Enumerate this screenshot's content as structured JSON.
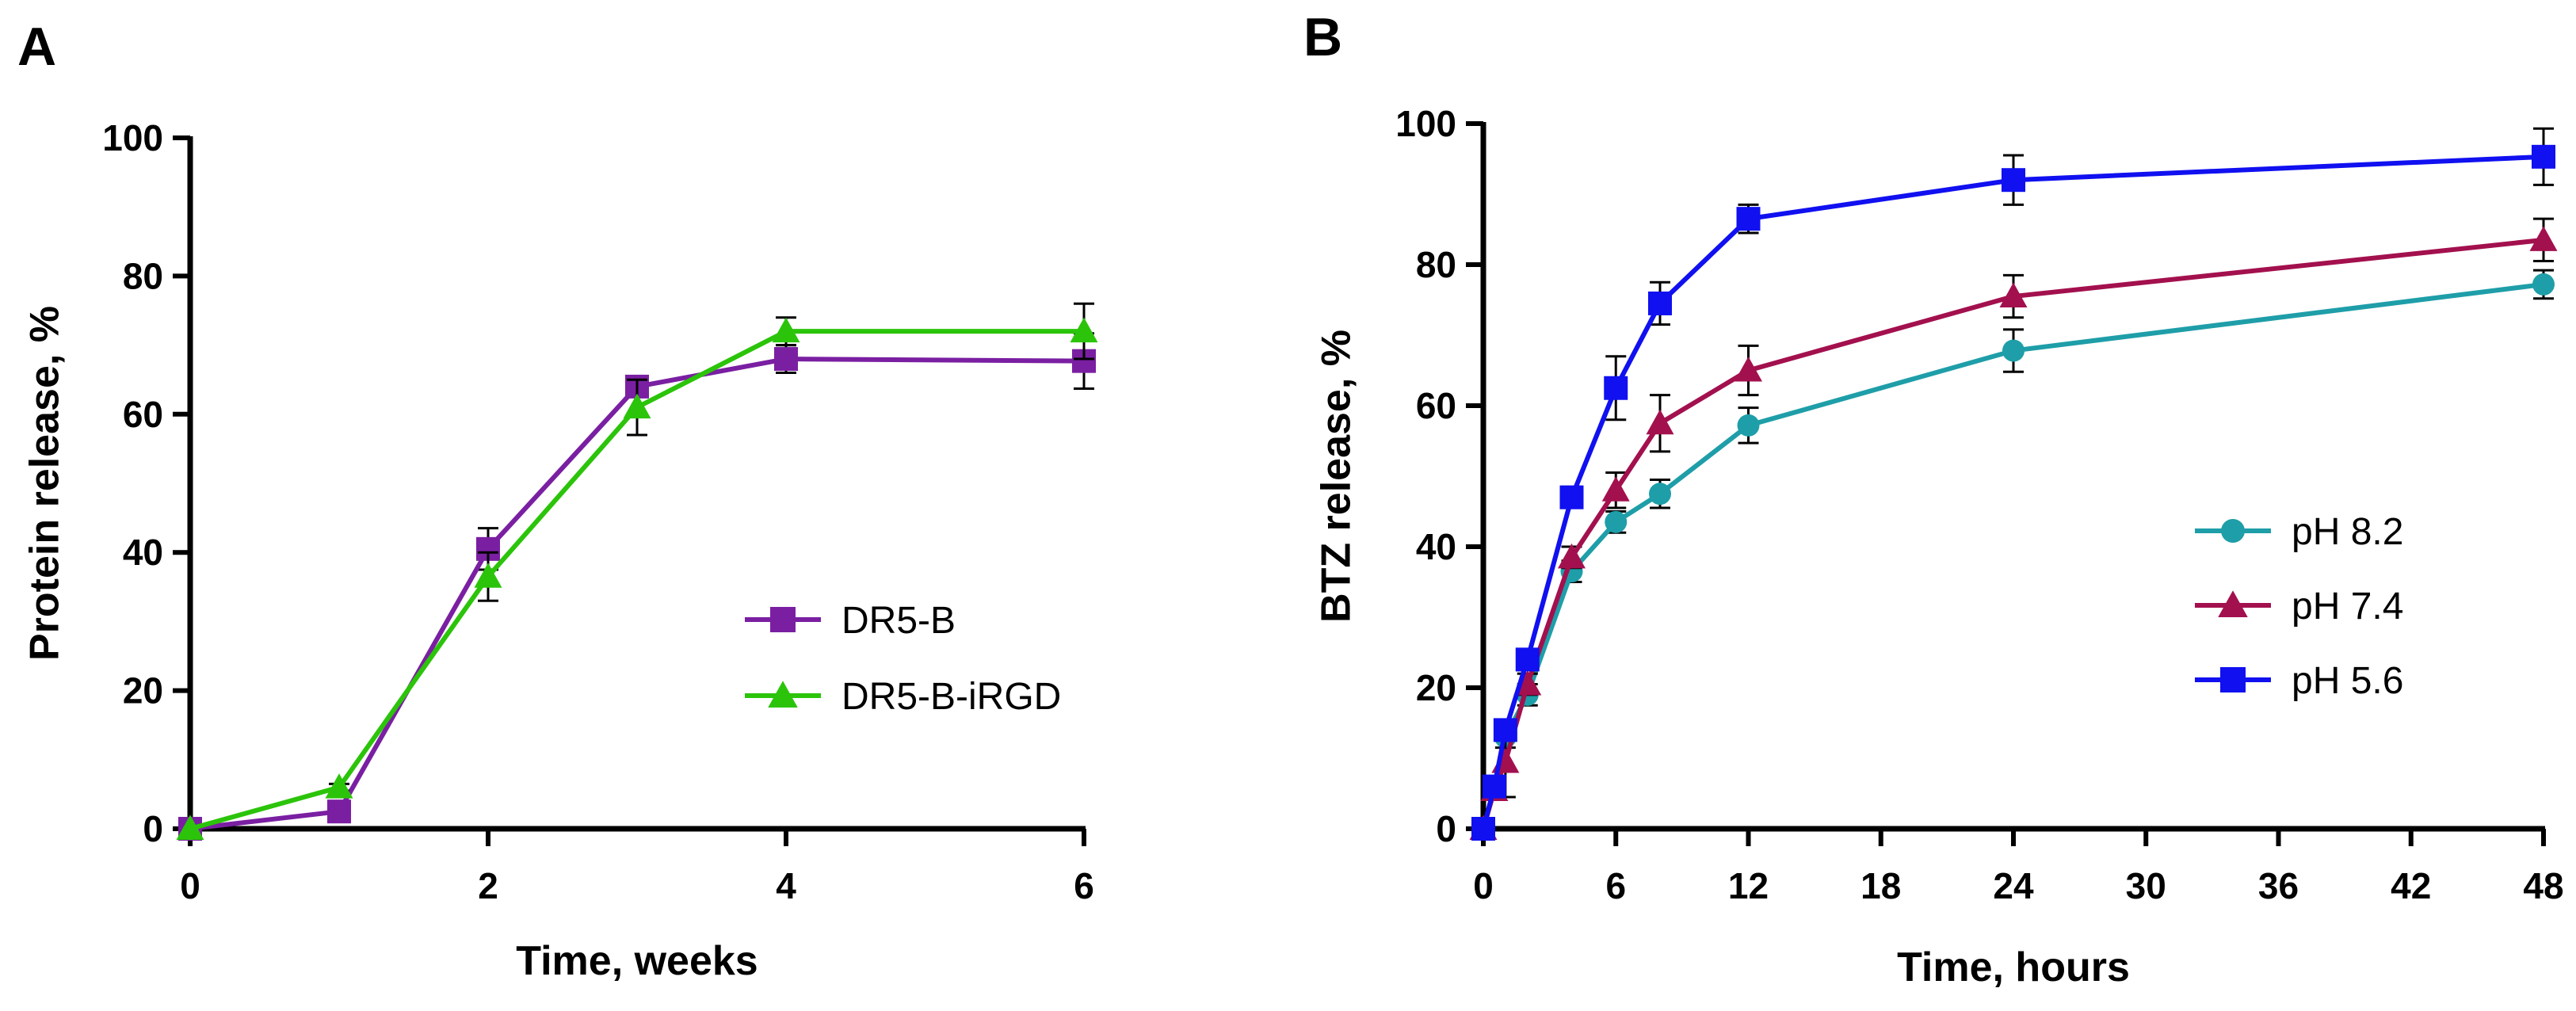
{
  "chart_data": [
    {
      "panel": "A",
      "type": "line",
      "xlabel": "Time, weeks",
      "ylabel": "Protein release, %",
      "xlim": [
        0,
        6
      ],
      "ylim": [
        0,
        100
      ],
      "xticks": [
        0,
        2,
        4,
        6
      ],
      "yticks": [
        0,
        20,
        40,
        60,
        80,
        100
      ],
      "grid": false,
      "legend_position": "center-right",
      "series": [
        {
          "name": "DR5-B",
          "color": "#7a1fa2",
          "marker": "square",
          "x": [
            0,
            1,
            2,
            3,
            4,
            6
          ],
          "y": [
            0,
            2.5,
            40.5,
            64,
            68,
            67.7
          ],
          "err": [
            0,
            0.5,
            3,
            1.5,
            2,
            4
          ]
        },
        {
          "name": "DR5-B-iRGD",
          "color": "#2bc40a",
          "marker": "triangle",
          "x": [
            0,
            1,
            2,
            3,
            4,
            6
          ],
          "y": [
            0,
            6,
            36.5,
            61,
            72,
            72
          ],
          "err": [
            0,
            0.5,
            3.5,
            4,
            2,
            4
          ]
        }
      ]
    },
    {
      "panel": "B",
      "type": "line",
      "xlabel": "Time, hours",
      "ylabel": "BTZ release, %",
      "xlim": [
        0,
        48
      ],
      "ylim": [
        0,
        100
      ],
      "xticks": [
        0,
        6,
        12,
        18,
        24,
        30,
        36,
        42,
        48
      ],
      "yticks": [
        0,
        20,
        40,
        60,
        80,
        100
      ],
      "grid": false,
      "legend_position": "center-right",
      "series": [
        {
          "name": "pH 8.2",
          "color": "#1e9ea8",
          "marker": "circle",
          "x": [
            0,
            0.5,
            1,
            2,
            4,
            6,
            8,
            12,
            24,
            48
          ],
          "y": [
            0,
            5.5,
            13,
            19,
            36.5,
            43.5,
            47.5,
            57.2,
            67.8,
            77.2
          ],
          "err": [
            0,
            1,
            1.5,
            1.5,
            1.5,
            1.5,
            2,
            2.5,
            3,
            2
          ]
        },
        {
          "name": "pH 7.4",
          "color": "#a3104e",
          "marker": "triangle",
          "x": [
            0,
            0.5,
            1,
            2,
            4,
            6,
            8,
            12,
            24,
            48
          ],
          "y": [
            0,
            5.5,
            9.5,
            20.5,
            38.5,
            48,
            57.5,
            65,
            75.5,
            83.5
          ],
          "err": [
            0,
            1,
            5,
            1.5,
            1.5,
            2.5,
            4,
            3.5,
            3,
            3
          ]
        },
        {
          "name": "pH 5.6",
          "color": "#1010f0",
          "marker": "square",
          "x": [
            0,
            0.5,
            1,
            2,
            4,
            6,
            8,
            12,
            24,
            48
          ],
          "y": [
            0,
            6,
            14,
            24,
            47,
            62.5,
            74.5,
            86.5,
            92,
            95.3
          ],
          "err": [
            0,
            1,
            1.5,
            1.5,
            1.5,
            4.5,
            3,
            2,
            3.5,
            4
          ]
        }
      ]
    }
  ]
}
